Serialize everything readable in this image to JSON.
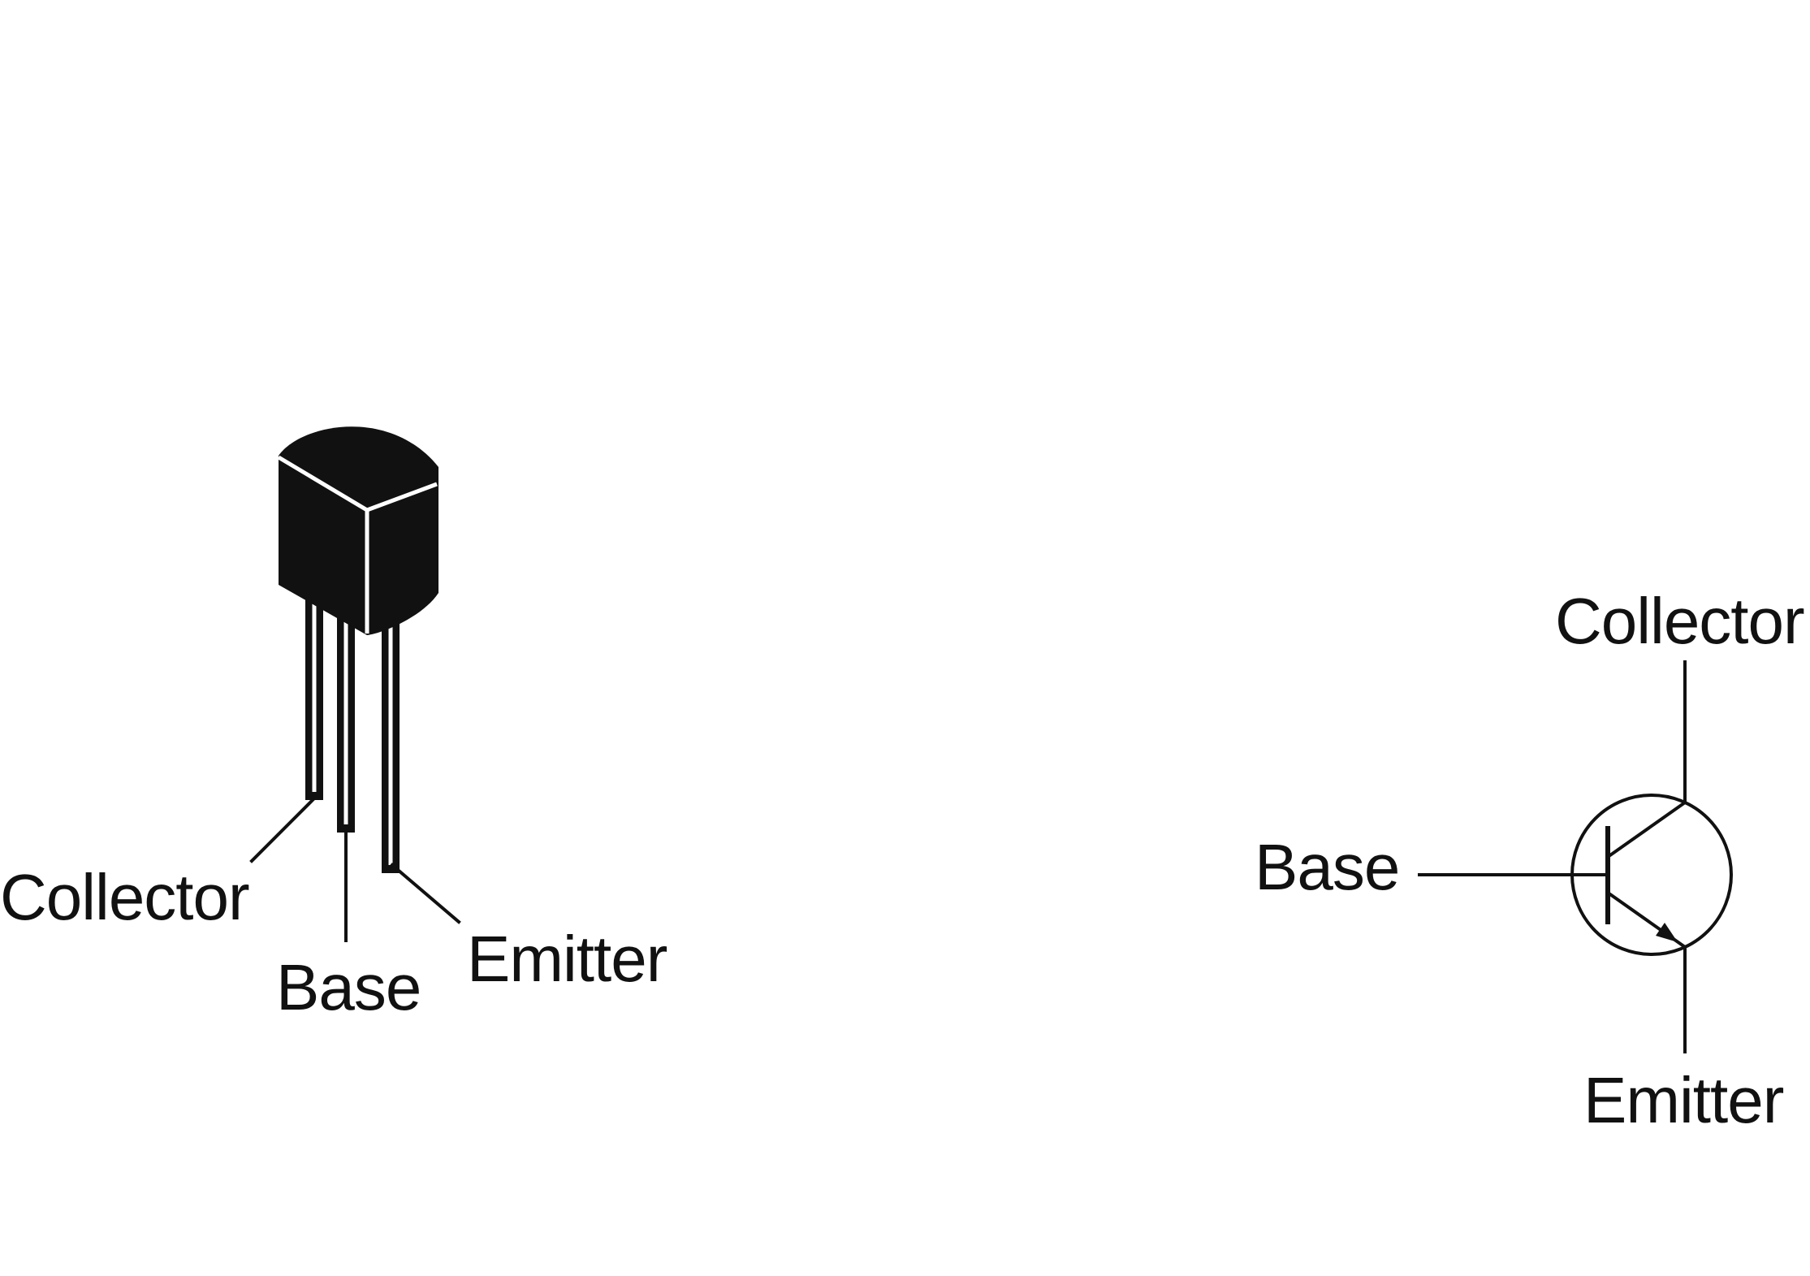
{
  "package": {
    "labels": {
      "collector": "Collector",
      "base": "Base",
      "emitter": "Emitter"
    }
  },
  "symbol": {
    "labels": {
      "collector": "Collector",
      "base": "Base",
      "emitter": "Emitter"
    }
  },
  "colors": {
    "ink": "#111111",
    "background": "#ffffff"
  }
}
